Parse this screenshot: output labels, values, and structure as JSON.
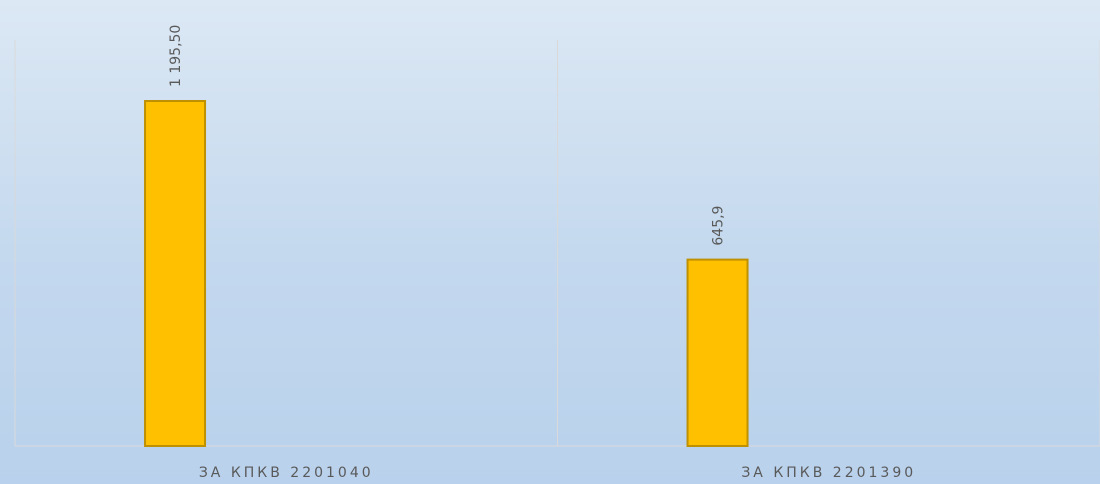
{
  "chart_data": {
    "type": "bar",
    "categories": [
      "ЗА КПКВ 2201040",
      "ЗА КПКВ 2201390"
    ],
    "values": [
      1195.5,
      645.9
    ],
    "value_labels": [
      "1 195,50",
      "645,9"
    ],
    "color": "#ffc000"
  }
}
